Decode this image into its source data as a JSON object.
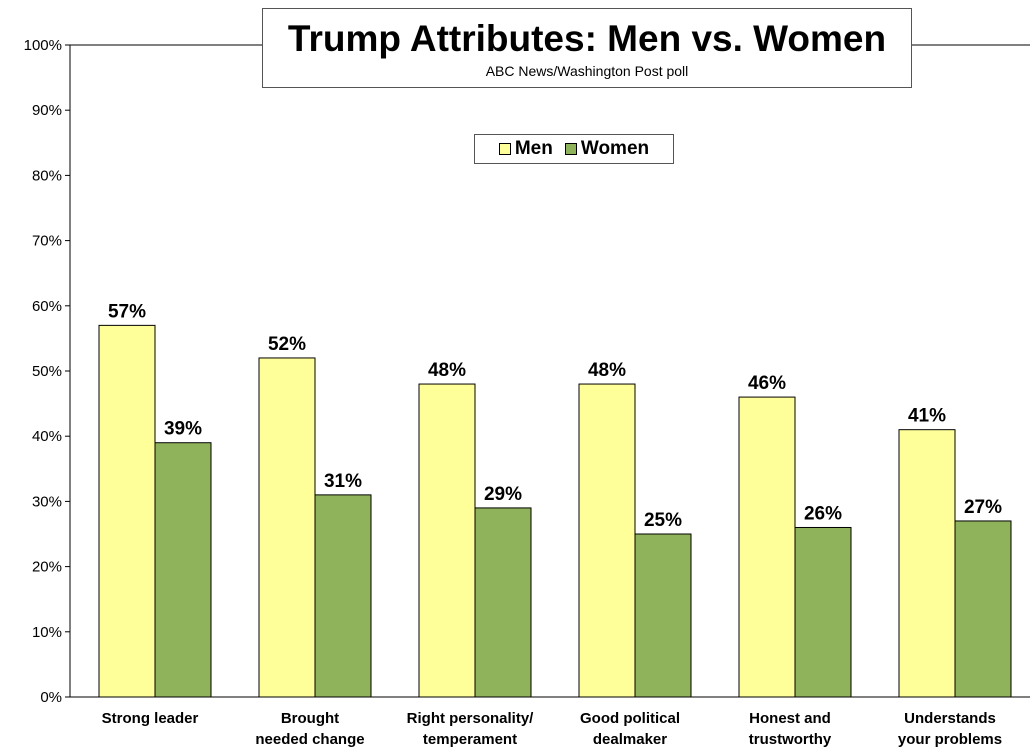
{
  "title": "Trump Attributes: Men vs. Women",
  "subtitle": "ABC News/Washington  Post poll",
  "colors": {
    "men": "#ffff99",
    "women": "#8fb35a",
    "bar_stroke": "#000000"
  },
  "chart_data": {
    "type": "bar",
    "title": "Trump Attributes: Men vs. Women",
    "subtitle": "ABC News/Washington  Post poll",
    "categories": [
      [
        "Strong leader"
      ],
      [
        "Brought",
        "needed change"
      ],
      [
        "Right personality/",
        "temperament"
      ],
      [
        "Good political",
        "dealmaker"
      ],
      [
        "Honest and",
        "trustworthy"
      ],
      [
        "Understands",
        "your problems"
      ]
    ],
    "series": [
      {
        "name": "Men",
        "values": [
          57,
          52,
          48,
          48,
          46,
          41
        ],
        "labels": [
          "57%",
          "52%",
          "48%",
          "48%",
          "46%",
          "41%"
        ]
      },
      {
        "name": "Women",
        "values": [
          39,
          31,
          29,
          25,
          26,
          27
        ],
        "labels": [
          "39%",
          "31%",
          "29%",
          "25%",
          "26%",
          "27%"
        ]
      }
    ],
    "ylim": [
      0,
      100
    ],
    "yticks": [
      "0%",
      "10%",
      "20%",
      "30%",
      "40%",
      "50%",
      "60%",
      "70%",
      "80%",
      "90%",
      "100%"
    ],
    "legend": "top-center",
    "grid": false
  }
}
